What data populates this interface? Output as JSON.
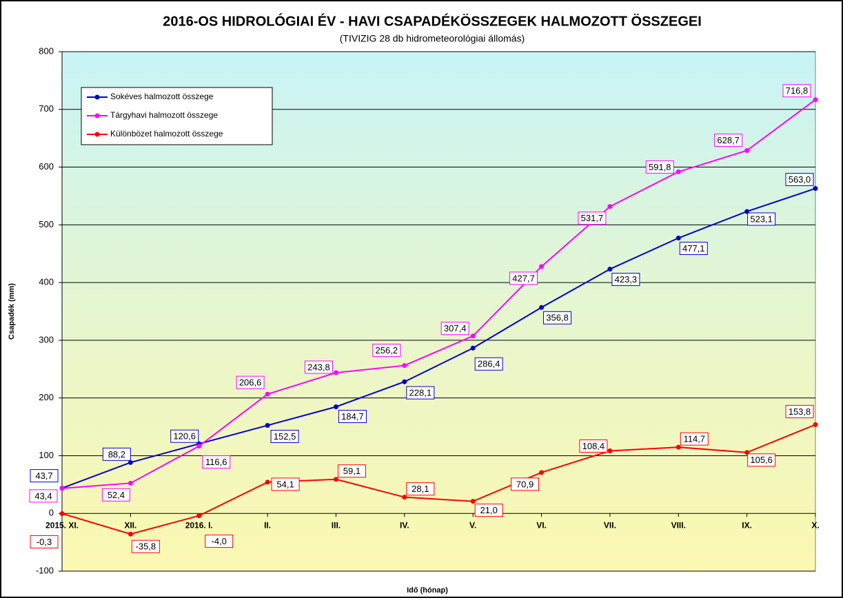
{
  "chart_data": {
    "type": "line",
    "title": "2016-OS HIDROLÓGIAI ÉV - HAVI CSAPADÉKÖSSZEGEK HALMOZOTT ÖSSZEGEI",
    "subtitle": "(TIVIZIG  28 db hidrometeorológiai állomás)",
    "ylabel": "Csapadék (mm)",
    "xlabel": "Idő (hónap)",
    "categories": [
      "2015. XI.",
      "XII.",
      "2016. I.",
      "II.",
      "III.",
      "IV.",
      "V.",
      "VI.",
      "VII.",
      "VIII.",
      "IX.",
      "X."
    ],
    "series": [
      {
        "name": "Sokéves halmozott összege",
        "color": "#0000cc",
        "values": [
          43.7,
          88.2,
          120.6,
          152.5,
          184.7,
          228.1,
          286.4,
          356.8,
          423.3,
          477.1,
          523.1,
          563.0
        ],
        "value_labels": [
          "43,7",
          "88,2",
          "120,6",
          "152,5",
          "184,7",
          "228,1",
          "286,4",
          "356,8",
          "423,3",
          "477,1",
          "523,1",
          "563,0"
        ]
      },
      {
        "name": "Tárgyhavi halmozott összege",
        "color": "#ff00ff",
        "values": [
          43.4,
          52.4,
          116.6,
          206.6,
          243.8,
          256.2,
          307.4,
          427.7,
          531.7,
          591.8,
          628.7,
          716.8
        ],
        "value_labels": [
          "43,4",
          "52,4",
          "116,6",
          "206,6",
          "243,8",
          "256,2",
          "307,4",
          "427,7",
          "531,7",
          "591,8",
          "628,7",
          "716,8"
        ]
      },
      {
        "name": "Különbözet halmozott összege",
        "color": "#ff0000",
        "values": [
          -0.3,
          -35.8,
          -4.0,
          54.1,
          59.1,
          28.1,
          21.0,
          70.9,
          108.4,
          114.7,
          105.6,
          153.8
        ],
        "value_labels": [
          "-0,3",
          "-35,8",
          "-4,0",
          "54,1",
          "59,1",
          "28,1",
          "21,0",
          "70,9",
          "108,4",
          "114,7",
          "105,6",
          "153,8"
        ]
      }
    ],
    "ylim": [
      -100,
      800
    ],
    "yticks": [
      -100,
      0,
      100,
      200,
      300,
      400,
      500,
      600,
      700,
      800
    ],
    "grid": true,
    "legend": "upper left"
  }
}
